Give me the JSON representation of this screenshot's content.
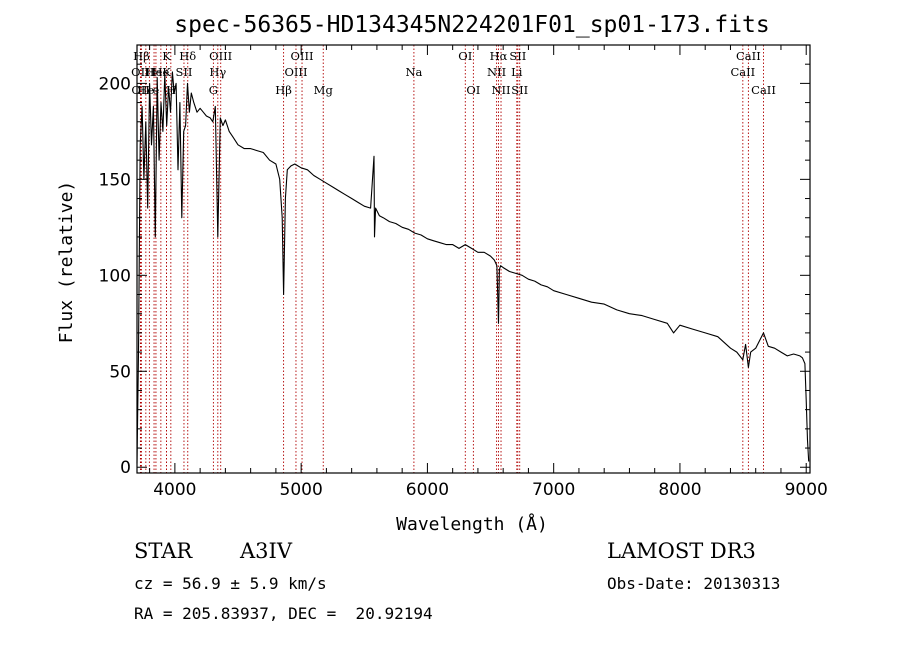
{
  "chart_data": {
    "type": "line",
    "title": "spec-56365-HD134345N224201F01_sp01-173.fits",
    "xlabel": "Wavelength (Å)",
    "ylabel": "Flux (relative)",
    "xlim": [
      3700,
      9030
    ],
    "ylim": [
      -3,
      220
    ],
    "xticks": [
      4000,
      5000,
      6000,
      7000,
      8000,
      9000
    ],
    "yticks": [
      0,
      50,
      100,
      150,
      200
    ],
    "grid": false,
    "series": [
      {
        "name": "flux",
        "x": [
          3700,
          3712,
          3725,
          3740,
          3755,
          3770,
          3785,
          3800,
          3815,
          3830,
          3845,
          3860,
          3875,
          3890,
          3905,
          3920,
          3935,
          3950,
          3965,
          3980,
          3995,
          4010,
          4025,
          4040,
          4055,
          4070,
          4085,
          4100,
          4115,
          4130,
          4150,
          4175,
          4200,
          4225,
          4250,
          4280,
          4300,
          4320,
          4340,
          4360,
          4380,
          4400,
          4430,
          4460,
          4500,
          4550,
          4600,
          4650,
          4700,
          4750,
          4800,
          4830,
          4850,
          4861,
          4875,
          4890,
          4920,
          4950,
          5000,
          5050,
          5100,
          5150,
          5200,
          5250,
          5300,
          5350,
          5400,
          5450,
          5500,
          5550,
          5577,
          5581,
          5590,
          5620,
          5650,
          5700,
          5750,
          5800,
          5850,
          5900,
          5950,
          6000,
          6050,
          6100,
          6150,
          6200,
          6250,
          6300,
          6350,
          6400,
          6450,
          6500,
          6530,
          6550,
          6563,
          6570,
          6580,
          6600,
          6650,
          6700,
          6750,
          6800,
          6850,
          6900,
          6950,
          7000,
          7100,
          7200,
          7300,
          7400,
          7500,
          7600,
          7700,
          7800,
          7900,
          7950,
          8000,
          8100,
          8200,
          8300,
          8400,
          8450,
          8498,
          8520,
          8542,
          8560,
          8600,
          8662,
          8700,
          8750,
          8800,
          8850,
          8900,
          8950,
          8970,
          8990,
          9000,
          9010,
          9020
        ],
        "values": [
          2,
          60,
          168,
          188,
          150,
          180,
          135,
          200,
          168,
          188,
          120,
          203,
          160,
          190,
          175,
          205,
          178,
          198,
          185,
          206,
          195,
          200,
          155,
          190,
          130,
          175,
          178,
          200,
          185,
          195,
          190,
          185,
          187,
          185,
          183,
          182,
          180,
          188,
          120,
          182,
          178,
          181,
          175,
          172,
          168,
          166,
          166,
          165,
          164,
          160,
          158,
          150,
          130,
          90,
          140,
          155,
          157,
          158,
          156,
          155,
          152,
          150,
          148,
          146,
          144,
          142,
          140,
          138,
          136,
          135,
          162,
          120,
          135,
          131,
          130,
          128,
          127,
          125,
          124,
          122,
          121,
          119,
          118,
          117,
          116,
          116,
          114,
          116,
          114,
          112,
          112,
          110,
          108,
          105,
          75,
          103,
          105,
          104,
          102,
          101,
          100,
          98,
          97,
          95,
          94,
          92,
          90,
          88,
          86,
          85,
          82,
          80,
          79,
          77,
          75,
          70,
          74,
          72,
          70,
          68,
          62,
          60,
          56,
          64,
          52,
          60,
          62,
          70,
          63,
          62,
          60,
          58,
          59,
          58,
          57,
          54,
          35,
          14,
          3
        ]
      }
    ],
    "lines": [
      {
        "name": "Hβ",
        "wave": 3735,
        "row": 0
      },
      {
        "name": "OII",
        "wave": 3727,
        "row": 1
      },
      {
        "name": "OII",
        "wave": 3729,
        "row": 2
      },
      {
        "name": "He",
        "wave": 3770,
        "row": 2
      },
      {
        "name": "H",
        "wave": 3798,
        "row": 1
      },
      {
        "name": "He",
        "wave": 3835,
        "row": 1
      },
      {
        "name": "e",
        "wave": 3850,
        "row": 2
      },
      {
        "name": "K",
        "wave": 3934,
        "row": 0
      },
      {
        "name": "He",
        "wave": 3889,
        "row": 1
      },
      {
        "name": "K",
        "wave": 3934,
        "row": 1
      },
      {
        "name": "H",
        "wave": 3968,
        "row": 2
      },
      {
        "name": "Hδ",
        "wave": 4102,
        "row": 0
      },
      {
        "name": "SII",
        "wave": 4072,
        "row": 1
      },
      {
        "name": "OIII",
        "wave": 4363,
        "row": 0
      },
      {
        "name": "Hγ",
        "wave": 4340,
        "row": 1
      },
      {
        "name": "G",
        "wave": 4305,
        "row": 2
      },
      {
        "name": "Hβ",
        "wave": 4861,
        "row": 2
      },
      {
        "name": "OIII",
        "wave": 5007,
        "row": 0
      },
      {
        "name": "OIII",
        "wave": 4959,
        "row": 1
      },
      {
        "name": "Mg",
        "wave": 5175,
        "row": 2
      },
      {
        "name": "Na",
        "wave": 5893,
        "row": 1
      },
      {
        "name": "OI",
        "wave": 6300,
        "row": 0
      },
      {
        "name": "OI",
        "wave": 6364,
        "row": 2
      },
      {
        "name": "Hα",
        "wave": 6563,
        "row": 0
      },
      {
        "name": "SII",
        "wave": 6716,
        "row": 0
      },
      {
        "name": "NII",
        "wave": 6548,
        "row": 1
      },
      {
        "name": "Li",
        "wave": 6708,
        "row": 1
      },
      {
        "name": "NII",
        "wave": 6583,
        "row": 2
      },
      {
        "name": "SII",
        "wave": 6731,
        "row": 2
      },
      {
        "name": "CaII",
        "wave": 8542,
        "row": 0
      },
      {
        "name": "CaII",
        "wave": 8498,
        "row": 1
      },
      {
        "name": "CaII",
        "wave": 8662,
        "row": 2
      }
    ],
    "line_color": "#b00000"
  },
  "info": {
    "class": "STAR",
    "subclass": "A3IV",
    "survey": "LAMOST DR3",
    "cz": "cz = 56.9 ± 5.9 km/s",
    "obs_date": "Obs-Date: 20130313",
    "coords": "RA = 205.83937, DEC =  20.92194"
  }
}
